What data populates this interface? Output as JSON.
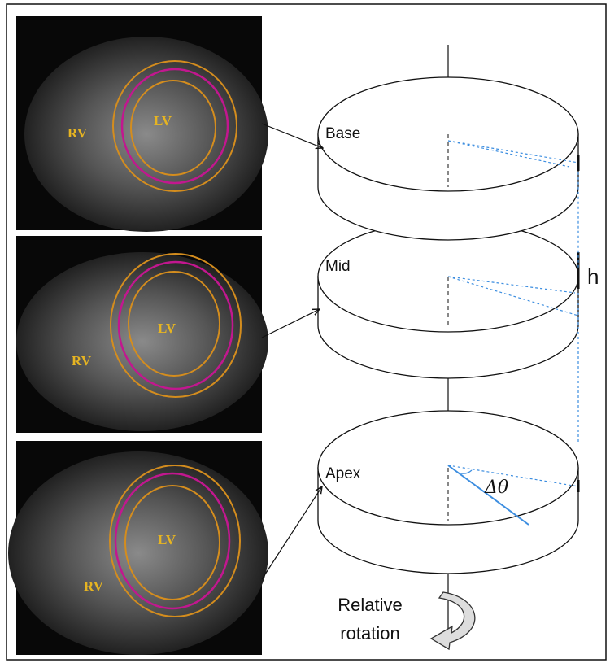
{
  "panels": [
    {
      "rv": "RV",
      "lv": "LV"
    },
    {
      "rv": "RV",
      "lv": "LV"
    },
    {
      "rv": "RV",
      "lv": "LV"
    }
  ],
  "discs": [
    {
      "label": "Base"
    },
    {
      "label": "Mid"
    },
    {
      "label": "Apex"
    }
  ],
  "height_label": "h",
  "angle_label": "Δθ",
  "rotation_label": [
    "Relative",
    "rotation"
  ]
}
